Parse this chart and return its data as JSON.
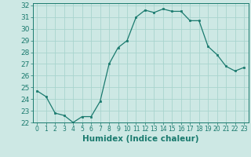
{
  "x": [
    0,
    1,
    2,
    3,
    4,
    5,
    6,
    7,
    8,
    9,
    10,
    11,
    12,
    13,
    14,
    15,
    16,
    17,
    18,
    19,
    20,
    21,
    22,
    23
  ],
  "y": [
    24.7,
    24.2,
    22.8,
    22.6,
    22.0,
    22.5,
    22.5,
    23.8,
    27.0,
    28.4,
    29.0,
    31.0,
    31.6,
    31.4,
    31.7,
    31.5,
    31.5,
    30.7,
    30.7,
    28.5,
    27.8,
    26.8,
    26.4,
    26.7
  ],
  "line_color": "#1a7a6e",
  "marker": "s",
  "marker_size": 2,
  "bg_color": "#cde8e4",
  "grid_color": "#a8d4ce",
  "xlabel": "Humidex (Indice chaleur)",
  "xlim": [
    -0.5,
    23.5
  ],
  "ylim": [
    22,
    32.2
  ],
  "yticks": [
    22,
    23,
    24,
    25,
    26,
    27,
    28,
    29,
    30,
    31,
    32
  ],
  "xticks": [
    0,
    1,
    2,
    3,
    4,
    5,
    6,
    7,
    8,
    9,
    10,
    11,
    12,
    13,
    14,
    15,
    16,
    17,
    18,
    19,
    20,
    21,
    22,
    23
  ],
  "tick_color": "#1a7a6e",
  "label_color": "#1a7a6e",
  "xlabel_fontsize": 7.5,
  "ytick_fontsize": 6.5,
  "xtick_fontsize": 5.5
}
